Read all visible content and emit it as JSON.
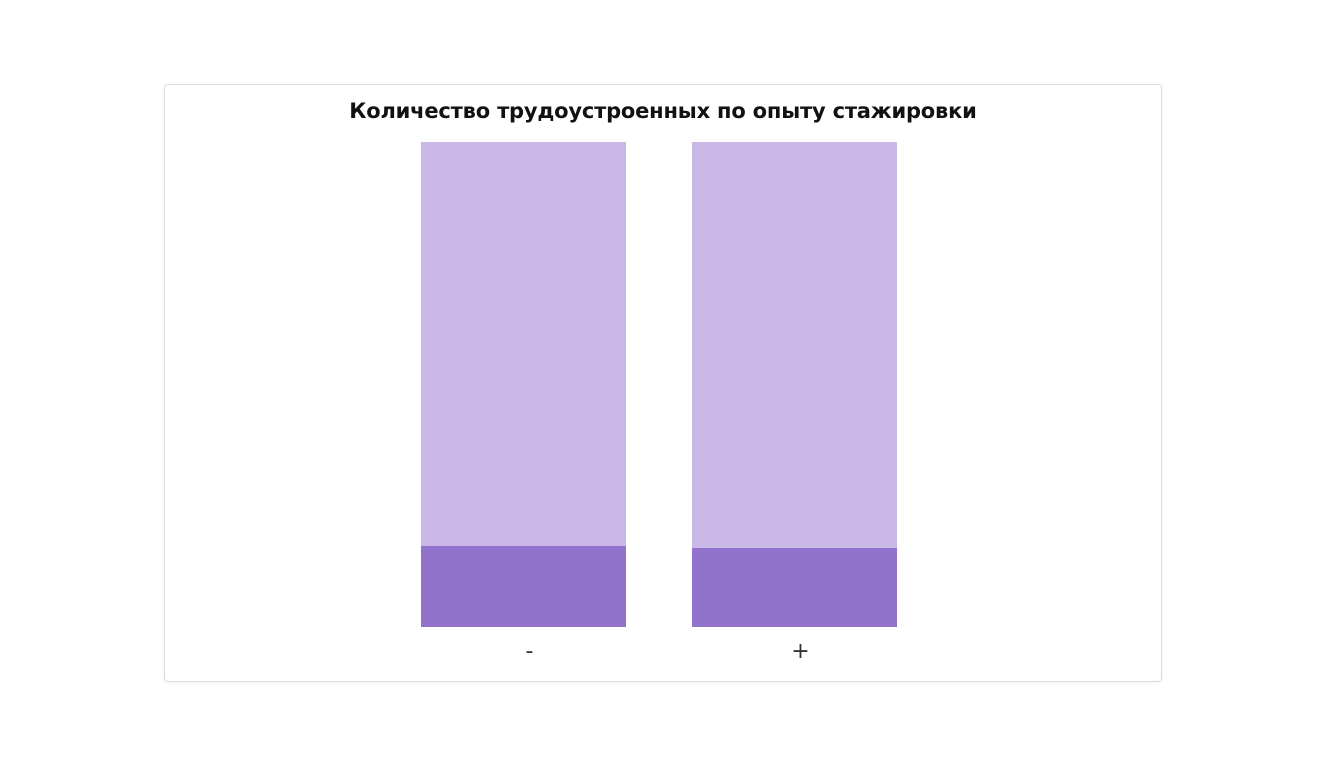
{
  "chart_data": {
    "type": "bar",
    "stacked": true,
    "normalized": true,
    "title": "Количество трудоустроенных по опыту стажировки",
    "xlabel": "",
    "ylabel": "",
    "categories": [
      "-",
      "+"
    ],
    "series": [
      {
        "values": [
          0.167,
          0.163
        ],
        "color": "#9172cd"
      },
      {
        "values": [
          0.833,
          0.837
        ],
        "color": "#c9b8e6"
      }
    ],
    "ylim": [
      0,
      1
    ],
    "grid": false,
    "legend": "none"
  }
}
